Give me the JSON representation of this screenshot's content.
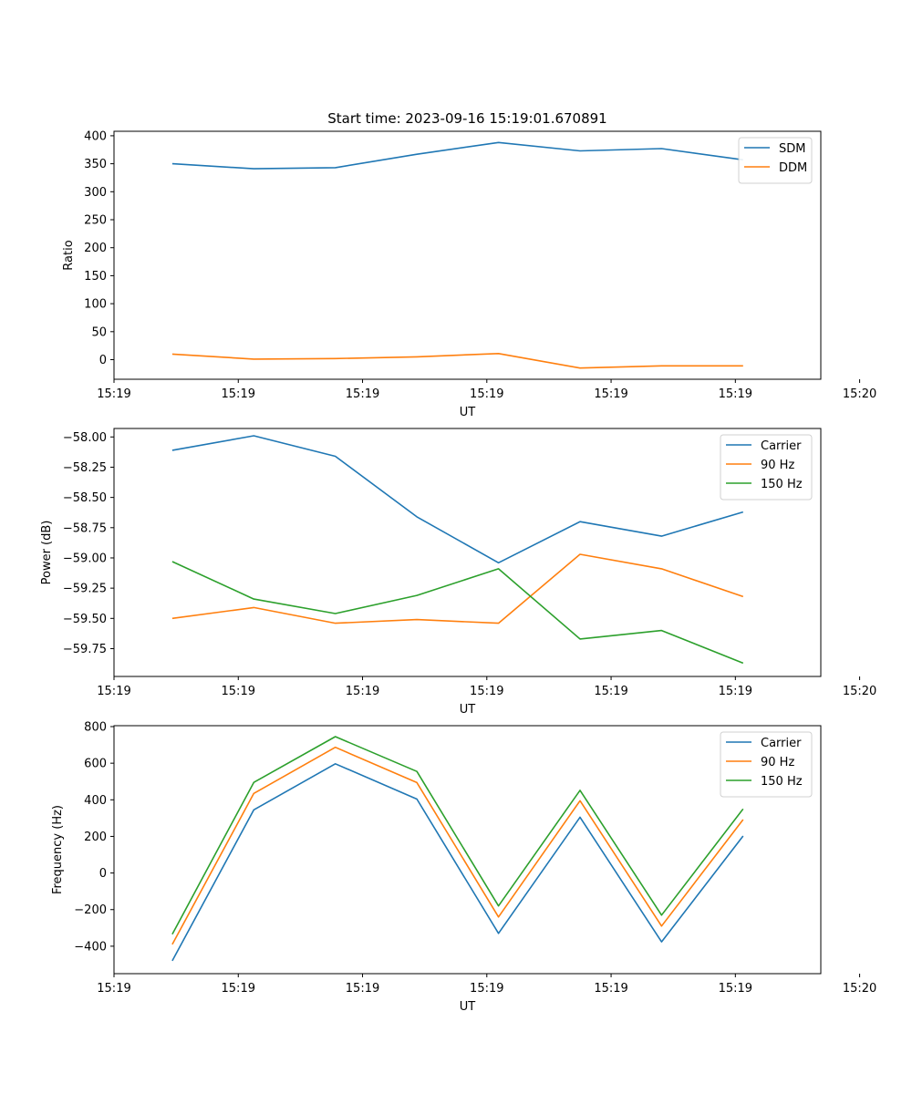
{
  "figure_title": "Start time: 2023-09-16 15:19:01.670891",
  "chart_data": [
    {
      "type": "line",
      "title": "Start time: 2023-09-16 15:19:01.670891",
      "xlabel": "UT",
      "ylabel": "Ratio",
      "xlim": [
        -0.6,
        8.5
      ],
      "ylim": [
        -35,
        408
      ],
      "x": [
        0.15,
        1.2,
        2.25,
        3.3,
        4.35,
        5.4,
        6.45,
        7.5
      ],
      "xticks": [
        -0.6,
        1.0,
        2.6,
        4.2,
        5.8,
        7.4,
        9.0
      ],
      "xtick_labels": [
        "15:19",
        "15:19",
        "15:19",
        "15:19",
        "15:19",
        "15:19",
        "15:20"
      ],
      "yticks": [
        0,
        50,
        100,
        150,
        200,
        250,
        300,
        350,
        400
      ],
      "ytick_labels": [
        "0",
        "50",
        "100",
        "150",
        "200",
        "250",
        "300",
        "350",
        "400"
      ],
      "series": [
        {
          "name": "SDM",
          "color": "#1f77b4",
          "values": [
            350,
            341,
            343,
            367,
            388,
            373,
            377,
            357
          ]
        },
        {
          "name": "DDM",
          "color": "#ff7f0e",
          "values": [
            10,
            1,
            2,
            5,
            11,
            -15,
            -11,
            -11
          ]
        }
      ]
    },
    {
      "type": "line",
      "title": "",
      "xlabel": "UT",
      "ylabel": "Power (dB)",
      "xlim": [
        -0.6,
        8.5
      ],
      "ylim": [
        -59.98,
        -57.93
      ],
      "x": [
        0.15,
        1.2,
        2.25,
        3.3,
        4.35,
        5.4,
        6.45,
        7.5
      ],
      "xticks": [
        -0.6,
        1.0,
        2.6,
        4.2,
        5.8,
        7.4,
        9.0
      ],
      "xtick_labels": [
        "15:19",
        "15:19",
        "15:19",
        "15:19",
        "15:19",
        "15:19",
        "15:20"
      ],
      "yticks": [
        -59.75,
        -59.5,
        -59.25,
        -59.0,
        -58.75,
        -58.5,
        -58.25,
        -58.0
      ],
      "ytick_labels": [
        "−59.75",
        "−59.50",
        "−59.25",
        "−59.00",
        "−58.75",
        "−58.50",
        "−58.25",
        "−58.00"
      ],
      "series": [
        {
          "name": "Carrier",
          "color": "#1f77b4",
          "values": [
            -58.11,
            -57.99,
            -58.16,
            -58.66,
            -59.04,
            -58.7,
            -58.82,
            -58.62
          ]
        },
        {
          "name": "90 Hz",
          "color": "#ff7f0e",
          "values": [
            -59.5,
            -59.41,
            -59.54,
            -59.51,
            -59.54,
            -58.97,
            -59.09,
            -59.32
          ]
        },
        {
          "name": "150 Hz",
          "color": "#2ca02c",
          "values": [
            -59.03,
            -59.34,
            -59.46,
            -59.31,
            -59.09,
            -59.67,
            -59.6,
            -59.87
          ]
        }
      ]
    },
    {
      "type": "line",
      "title": "",
      "xlabel": "UT",
      "ylabel": "Frequency (Hz)",
      "xlim": [
        -0.6,
        8.5
      ],
      "ylim": [
        -550,
        805
      ],
      "x": [
        0.15,
        1.2,
        2.25,
        3.3,
        4.35,
        5.4,
        6.45,
        7.5
      ],
      "xticks": [
        -0.6,
        1.0,
        2.6,
        4.2,
        5.8,
        7.4,
        9.0
      ],
      "xtick_labels": [
        "15:19",
        "15:19",
        "15:19",
        "15:19",
        "15:19",
        "15:19",
        "15:20"
      ],
      "yticks": [
        -400,
        -200,
        0,
        200,
        400,
        600,
        800
      ],
      "ytick_labels": [
        "−400",
        "−200",
        "0",
        "200",
        "400",
        "600",
        "800"
      ],
      "series": [
        {
          "name": "Carrier",
          "color": "#1f77b4",
          "values": [
            -480,
            345,
            597,
            404,
            -330,
            305,
            -376,
            202
          ]
        },
        {
          "name": "90 Hz",
          "color": "#ff7f0e",
          "values": [
            -390,
            435,
            687,
            494,
            -240,
            395,
            -290,
            292
          ]
        },
        {
          "name": "150 Hz",
          "color": "#2ca02c",
          "values": [
            -335,
            495,
            745,
            555,
            -180,
            452,
            -230,
            350
          ]
        }
      ]
    }
  ]
}
